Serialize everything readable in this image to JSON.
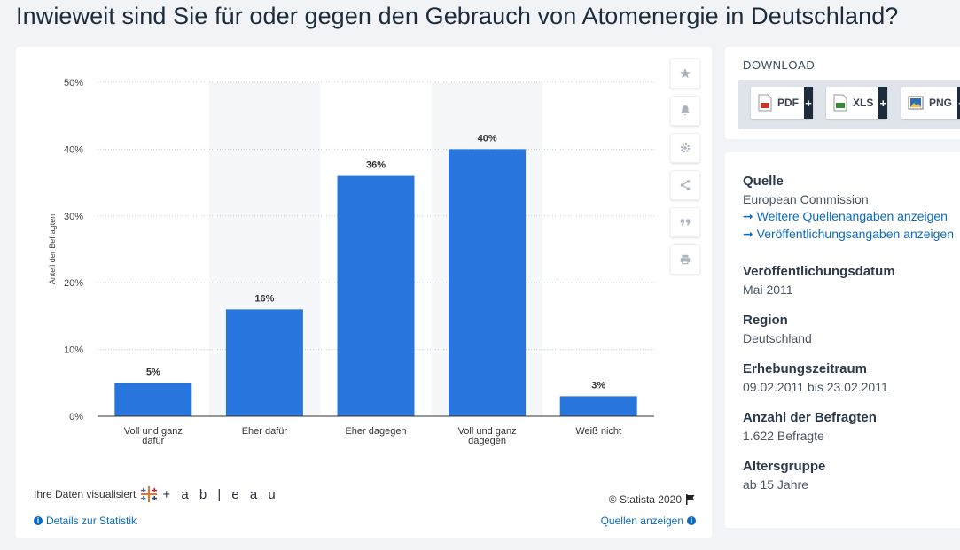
{
  "title": "Inwieweit sind Sie für oder gegen den Gebrauch von Atomenergie in Deutschland?",
  "chart_data": {
    "type": "bar",
    "categories": [
      [
        "Voll und ganz",
        "dafür"
      ],
      [
        "Eher dafür"
      ],
      [
        "Eher dagegen"
      ],
      [
        "Voll und ganz",
        "dagegen"
      ],
      [
        "Weiß nicht"
      ]
    ],
    "values": [
      5,
      16,
      36,
      40,
      3
    ],
    "value_labels": [
      "5%",
      "16%",
      "36%",
      "40%",
      "3%"
    ],
    "ylabel": "Anteil der Befragten",
    "yticks": [
      0,
      10,
      20,
      30,
      40,
      50
    ],
    "ytick_labels": [
      "0%",
      "10%",
      "20%",
      "30%",
      "40%",
      "50%"
    ],
    "ylim": [
      0,
      50
    ],
    "bar_color": "#2876dd",
    "grid": true
  },
  "toolbar": {
    "icons": [
      "star-icon",
      "bell-icon",
      "gear-icon",
      "share-icon",
      "quote-icon",
      "print-icon"
    ]
  },
  "footer": {
    "visualized_text": "Ihre Daten visualisiert",
    "tableau_text": "+ a b | e a u",
    "copyright": "© Statista 2020",
    "details_link": "Details zur Statistik",
    "sources_link": "Quellen anzeigen"
  },
  "download": {
    "title": "DOWNLOAD",
    "buttons": [
      {
        "label": "PDF",
        "icon": "pdf-icon",
        "color": "#c0392b"
      },
      {
        "label": "XLS",
        "icon": "xls-icon",
        "color": "#3a8a3a"
      },
      {
        "label": "PNG",
        "icon": "png-icon",
        "color": "#2e6fb8"
      }
    ],
    "plus": "+"
  },
  "info": {
    "source_label": "Quelle",
    "source_value": "European Commission",
    "more_sources_link": "Weitere Quellenangaben anzeigen",
    "publication_link": "Veröffentlichungsangaben anzeigen",
    "pub_date_label": "Veröffentlichungsdatum",
    "pub_date_value": "Mai 2011",
    "region_label": "Region",
    "region_value": "Deutschland",
    "survey_period_label": "Erhebungszeitraum",
    "survey_period_value": "09.02.2011 bis 23.02.2011",
    "respondents_label": "Anzahl der Befragten",
    "respondents_value": "1.622 Befragte",
    "age_group_label": "Altersgruppe",
    "age_group_value": "ab 15 Jahre"
  }
}
